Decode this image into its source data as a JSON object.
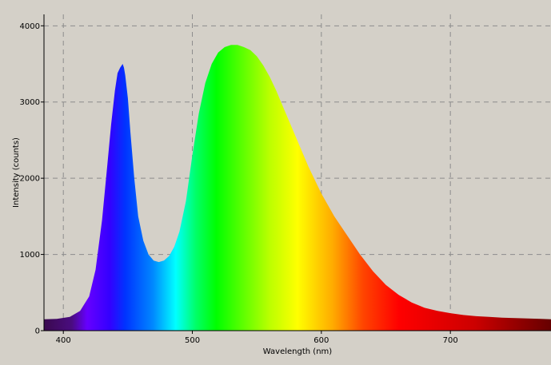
{
  "chart_data": {
    "type": "area",
    "title": "",
    "xlabel": "Wavelength (nm)",
    "ylabel": "Intensity (counts)",
    "xlim": [
      385,
      778
    ],
    "ylim": [
      0,
      4150
    ],
    "grid": true,
    "grid_style": "dashed",
    "x_ticks": [
      400,
      500,
      600,
      700
    ],
    "y_ticks": [
      0,
      1000,
      2000,
      3000,
      4000
    ],
    "fill": "spectral rainbow by wavelength",
    "series": [
      {
        "x": [
          385,
          395,
          405,
          413,
          420,
          425,
          430,
          434,
          437,
          440,
          442,
          444,
          446,
          447,
          448,
          450,
          452,
          455,
          458,
          462,
          466,
          470,
          474,
          478,
          482,
          486,
          490,
          495,
          500,
          505,
          510,
          515,
          520,
          525,
          530,
          535,
          540,
          545,
          550,
          555,
          560,
          565,
          570,
          575,
          580,
          590,
          600,
          610,
          620,
          630,
          640,
          650,
          660,
          670,
          680,
          690,
          700,
          710,
          720,
          730,
          740,
          750,
          760,
          770,
          778
        ],
        "y": [
          150,
          155,
          180,
          260,
          450,
          800,
          1450,
          2150,
          2700,
          3150,
          3380,
          3450,
          3500,
          3450,
          3350,
          3050,
          2600,
          2000,
          1500,
          1180,
          1000,
          920,
          900,
          920,
          980,
          1100,
          1300,
          1700,
          2300,
          2850,
          3250,
          3500,
          3650,
          3720,
          3750,
          3750,
          3720,
          3680,
          3600,
          3480,
          3330,
          3150,
          2950,
          2750,
          2550,
          2150,
          1800,
          1500,
          1250,
          1000,
          780,
          600,
          470,
          370,
          300,
          260,
          230,
          205,
          190,
          180,
          170,
          165,
          160,
          155,
          150
        ]
      }
    ]
  }
}
